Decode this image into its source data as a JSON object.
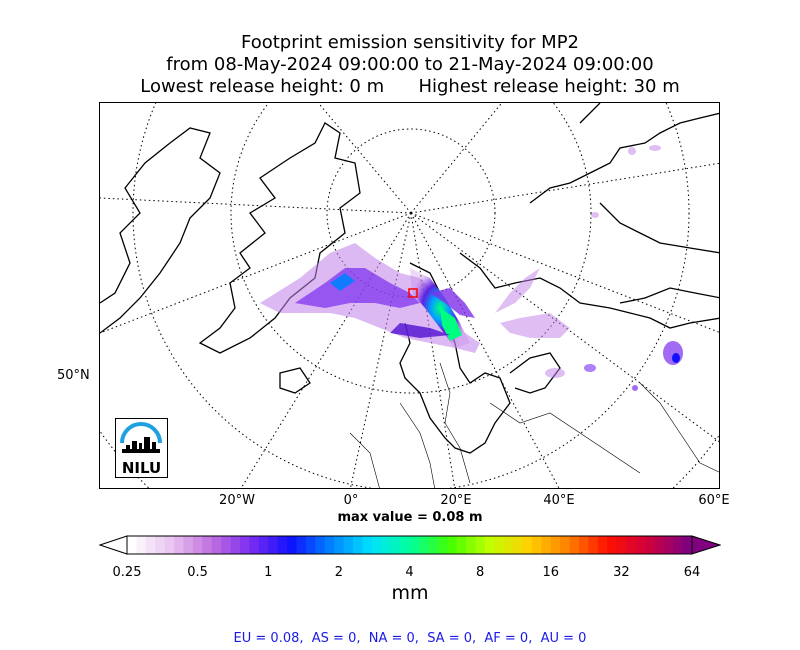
{
  "title": {
    "line1": "Footprint emission sensitivity for MP2",
    "line2": "from 08-May-2024 09:00:00 to 21-May-2024 09:00:00",
    "line3": "Lowest release height: 0 m      Highest release height: 30 m"
  },
  "map": {
    "lon_labels": [
      "20°W",
      "0°",
      "20°E",
      "40°E",
      "60°E"
    ],
    "lat_labels": [
      "50°N"
    ],
    "max_value_text": "max value = 0.08 m",
    "logo_text": "NILU"
  },
  "colorbar": {
    "ticks": [
      "0.25",
      "0.5",
      "1",
      "2",
      "4",
      "8",
      "16",
      "32",
      "64"
    ],
    "unit": "mm",
    "colors": [
      "#ffffff",
      "#e8c4f0",
      "#c070e0",
      "#7a2cf0",
      "#1010ff",
      "#0080ff",
      "#00e0ff",
      "#00ffa0",
      "#40ff00",
      "#c0ff00",
      "#ffd000",
      "#ff8000",
      "#ff1000",
      "#d0003c",
      "#800080"
    ]
  },
  "footer": "EU = 0.08,  AS = 0,  NA = 0,  SA = 0,  AF = 0,  AU = 0"
}
